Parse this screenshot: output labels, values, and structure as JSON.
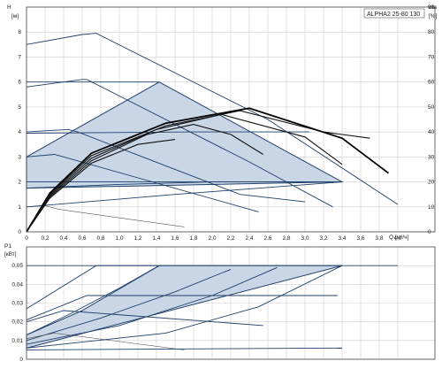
{
  "chart_data": [
    {
      "type": "line",
      "title": "ALPHA2 25-80 130",
      "ylabel": "H",
      "yunit": "[м]",
      "ylabel2": "eta",
      "yunit2": "[%]",
      "xlabel": "Q [м³/ч]",
      "xlim": [
        0,
        4.4
      ],
      "ylim": [
        0,
        9
      ],
      "ylim2": [
        0,
        90
      ],
      "x_ticks": [
        "0",
        "0,2",
        "0,4",
        "0,6",
        "0,8",
        "1,0",
        "1,2",
        "1,4",
        "1,6",
        "1,8",
        "2,0",
        "2,2",
        "2,4",
        "2,6",
        "2,8",
        "3,0",
        "3,2",
        "3,4",
        "3,6",
        "3,8",
        "4,0"
      ],
      "y_ticks": [
        "0",
        "1",
        "2",
        "3",
        "4",
        "5",
        "6",
        "7",
        "8"
      ],
      "y2_ticks": [
        "0",
        "10",
        "20",
        "30",
        "40",
        "50",
        "60",
        "70",
        "80",
        "90"
      ],
      "shaded_region": {
        "x": [
          0,
          1.43,
          3.4,
          0
        ],
        "y": [
          3.0,
          6.0,
          2.0,
          1.75
        ]
      },
      "series": [
        {
          "x": [
            0,
            0.6,
            0.75,
            2.6,
            4.0
          ],
          "y": [
            7.5,
            7.9,
            7.95,
            4.5,
            1.1
          ]
        },
        {
          "x": [
            0,
            1.43
          ],
          "y": [
            6.0,
            6.0
          ]
        },
        {
          "x": [
            0,
            0.6,
            0.65,
            2.4,
            3.3
          ],
          "y": [
            5.8,
            6.1,
            6.1,
            2.8,
            1.0
          ]
        },
        {
          "x": [
            0,
            1.8,
            3.05
          ],
          "y": [
            3.95,
            4.0,
            4.0
          ]
        },
        {
          "x": [
            0,
            0.45,
            0.55,
            2.3,
            3.0
          ],
          "y": [
            4.0,
            4.1,
            4.0,
            1.5,
            1.2
          ]
        },
        {
          "x": [
            0,
            3.4
          ],
          "y": [
            2.0,
            2.0
          ]
        },
        {
          "x": [
            0,
            0.3,
            0.4,
            2.5
          ],
          "y": [
            3.0,
            3.1,
            3.0,
            0.8
          ]
        },
        {
          "x": [
            0,
            1.0,
            2.0,
            3.4
          ],
          "y": [
            1.75,
            1.9,
            2.0,
            2.0
          ]
        },
        {
          "x": [
            0,
            0.2,
            0.35,
            1.7
          ],
          "y": [
            1.0,
            1.05,
            0.9,
            0.2
          ]
        },
        {
          "x": [
            0,
            1.6,
            3.4
          ],
          "y": [
            1.0,
            1.5,
            2.0
          ]
        },
        {
          "x": [
            0,
            0.25,
            0.7,
            1.5,
            2.4,
            3.4,
            3.9
          ],
          "y": [
            0,
            1.55,
            3.15,
            4.35,
            4.95,
            3.75,
            2.35
          ]
        },
        {
          "x": [
            0,
            0.25,
            0.7,
            1.5,
            2.3,
            3.2,
            3.7
          ],
          "y": [
            0,
            1.5,
            3.05,
            4.25,
            4.85,
            4.0,
            3.75
          ]
        },
        {
          "x": [
            0,
            0.25,
            0.7,
            1.4,
            2.1,
            3.0,
            3.4
          ],
          "y": [
            0,
            1.45,
            2.95,
            4.1,
            4.7,
            3.8,
            2.7
          ]
        },
        {
          "x": [
            0,
            0.25,
            0.7,
            1.3,
            1.8,
            2.2,
            2.55
          ],
          "y": [
            0,
            1.4,
            2.85,
            3.9,
            4.3,
            3.9,
            3.1
          ]
        },
        {
          "x": [
            0,
            0.25,
            0.7,
            1.2,
            1.6
          ],
          "y": [
            0,
            1.35,
            2.75,
            3.5,
            3.7
          ]
        }
      ]
    },
    {
      "type": "line",
      "title": "",
      "ylabel": "P1",
      "yunit": "[кВт]",
      "xlim": [
        0,
        4.4
      ],
      "ylim": [
        0,
        0.06
      ],
      "y_ticks": [
        "0",
        "0,01",
        "0,02",
        "0,03",
        "0,04",
        "0,05"
      ],
      "shaded_region": {
        "x": [
          0,
          0.6,
          1.43,
          3.4,
          0
        ],
        "y": [
          0.013,
          0.026,
          0.05,
          0.05,
          0.006
        ]
      },
      "series": [
        {
          "x": [
            0,
            0.75,
            4.0
          ],
          "y": [
            0.027,
            0.05,
            0.05
          ]
        },
        {
          "x": [
            0,
            1.43
          ],
          "y": [
            0.05,
            0.05
          ]
        },
        {
          "x": [
            0,
            0.65,
            3.35
          ],
          "y": [
            0.021,
            0.034,
            0.034
          ]
        },
        {
          "x": [
            0,
            0.5,
            1.0,
            1.43
          ],
          "y": [
            0.013,
            0.025,
            0.038,
            0.05
          ]
        },
        {
          "x": [
            0,
            0.8,
            1.6,
            2.2
          ],
          "y": [
            0.01,
            0.022,
            0.036,
            0.048
          ]
        },
        {
          "x": [
            0,
            0.4,
            2.55
          ],
          "y": [
            0.02,
            0.026,
            0.018
          ]
        },
        {
          "x": [
            0,
            1.0,
            2.0,
            2.7
          ],
          "y": [
            0.008,
            0.018,
            0.034,
            0.049
          ]
        },
        {
          "x": [
            0,
            0.3,
            1.7
          ],
          "y": [
            0.011,
            0.014,
            0.005
          ]
        },
        {
          "x": [
            0,
            1.5,
            2.5,
            3.4
          ],
          "y": [
            0.006,
            0.014,
            0.028,
            0.05
          ]
        },
        {
          "x": [
            0,
            3.4
          ],
          "y": [
            0.005,
            0.006
          ]
        }
      ]
    }
  ]
}
